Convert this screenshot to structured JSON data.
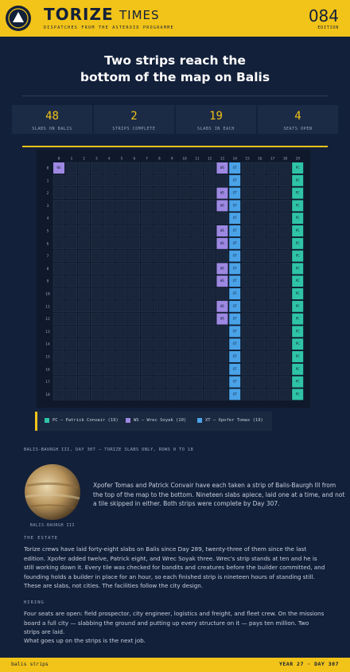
{
  "header": {
    "title": "TORIZE",
    "title2": "TIMES",
    "tagline": "DISPATCHES FROM THE ASTEROID PROGRAMME",
    "edition_number": "084",
    "edition_label": "EDITION"
  },
  "headline": "Two strips reach the bottom of the map on Balis",
  "stats": [
    {
      "value": "48",
      "label": "SLABS ON BALIS"
    },
    {
      "value": "2",
      "label": "STRIPS COMPLETE"
    },
    {
      "value": "19",
      "label": "SLABS IN EACH"
    },
    {
      "value": "4",
      "label": "SEATS OPEN"
    }
  ],
  "map": {
    "column_labels": [
      0,
      1,
      2,
      3,
      4,
      5,
      6,
      7,
      8,
      9,
      10,
      11,
      12,
      13,
      14,
      15,
      16,
      17,
      18,
      19
    ],
    "row_labels": [
      0,
      1,
      2,
      3,
      4,
      5,
      6,
      7,
      8,
      9,
      10,
      11,
      12,
      13,
      14,
      15,
      16,
      17,
      18
    ],
    "grid": [
      [
        "WS",
        null,
        null,
        null,
        null,
        null,
        null,
        null,
        null,
        null,
        null,
        null,
        null,
        "WS",
        "XT",
        null,
        null,
        null,
        null,
        "PC"
      ],
      [
        null,
        null,
        null,
        null,
        null,
        null,
        null,
        null,
        null,
        null,
        null,
        null,
        null,
        null,
        "XT",
        null,
        null,
        null,
        null,
        "PC"
      ],
      [
        null,
        null,
        null,
        null,
        null,
        null,
        null,
        null,
        null,
        null,
        null,
        null,
        null,
        "WS",
        "XT",
        null,
        null,
        null,
        null,
        "PC"
      ],
      [
        null,
        null,
        null,
        null,
        null,
        null,
        null,
        null,
        null,
        null,
        null,
        null,
        null,
        "WS",
        "XT",
        null,
        null,
        null,
        null,
        "PC"
      ],
      [
        null,
        null,
        null,
        null,
        null,
        null,
        null,
        null,
        null,
        null,
        null,
        null,
        null,
        null,
        "XT",
        null,
        null,
        null,
        null,
        "PC"
      ],
      [
        null,
        null,
        null,
        null,
        null,
        null,
        null,
        null,
        null,
        null,
        null,
        null,
        null,
        "WS",
        "XT",
        null,
        null,
        null,
        null,
        "PC"
      ],
      [
        null,
        null,
        null,
        null,
        null,
        null,
        null,
        null,
        null,
        null,
        null,
        null,
        null,
        "WS",
        "XT",
        null,
        null,
        null,
        null,
        "PC"
      ],
      [
        null,
        null,
        null,
        null,
        null,
        null,
        null,
        null,
        null,
        null,
        null,
        null,
        null,
        null,
        "XT",
        null,
        null,
        null,
        null,
        "PC"
      ],
      [
        null,
        null,
        null,
        null,
        null,
        null,
        null,
        null,
        null,
        null,
        null,
        null,
        null,
        "WS",
        "XT",
        null,
        null,
        null,
        null,
        "PC"
      ],
      [
        null,
        null,
        null,
        null,
        null,
        null,
        null,
        null,
        null,
        null,
        null,
        null,
        null,
        "WS",
        "XT",
        null,
        null,
        null,
        null,
        "PC"
      ],
      [
        null,
        null,
        null,
        null,
        null,
        null,
        null,
        null,
        null,
        null,
        null,
        null,
        null,
        null,
        "XT",
        null,
        null,
        null,
        null,
        "PC"
      ],
      [
        null,
        null,
        null,
        null,
        null,
        null,
        null,
        null,
        null,
        null,
        null,
        null,
        null,
        "WS",
        "XT",
        null,
        null,
        null,
        null,
        "PC"
      ],
      [
        null,
        null,
        null,
        null,
        null,
        null,
        null,
        null,
        null,
        null,
        null,
        null,
        null,
        "WS",
        "XT",
        null,
        null,
        null,
        null,
        "PC"
      ],
      [
        null,
        null,
        null,
        null,
        null,
        null,
        null,
        null,
        null,
        null,
        null,
        null,
        null,
        null,
        "XT",
        null,
        null,
        null,
        null,
        "PC"
      ],
      [
        null,
        null,
        null,
        null,
        null,
        null,
        null,
        null,
        null,
        null,
        null,
        null,
        null,
        null,
        "XT",
        null,
        null,
        null,
        null,
        "PC"
      ],
      [
        null,
        null,
        null,
        null,
        null,
        null,
        null,
        null,
        null,
        null,
        null,
        null,
        null,
        null,
        "XT",
        null,
        null,
        null,
        null,
        "PC"
      ],
      [
        null,
        null,
        null,
        null,
        null,
        null,
        null,
        null,
        null,
        null,
        null,
        null,
        null,
        null,
        "XT",
        null,
        null,
        null,
        null,
        "PC"
      ],
      [
        null,
        null,
        null,
        null,
        null,
        null,
        null,
        null,
        null,
        null,
        null,
        null,
        null,
        null,
        "XT",
        null,
        null,
        null,
        null,
        "PC"
      ],
      [
        null,
        null,
        null,
        null,
        null,
        null,
        null,
        null,
        null,
        null,
        null,
        null,
        null,
        null,
        "XT",
        null,
        null,
        null,
        null,
        "PC"
      ]
    ],
    "legend": [
      {
        "code": "PC",
        "label": "PC — Patrick Convair (19)",
        "color": "#2fc4a6"
      },
      {
        "code": "WS",
        "label": "WS — Wrec Soyak (10)",
        "color": "#9d88e2"
      },
      {
        "code": "XT",
        "label": "XT — Xpofer Tomas (19)",
        "color": "#4aa3e8"
      }
    ],
    "caption": "BALIS-BAURGH III, DAY 307 — TORIZE SLABS ONLY, ROWS 0 TO 18"
  },
  "planet_caption": "BALIS-BAURGH III",
  "lede": "Xpofer Tomas and Patrick Convair have each taken a strip of Balis-Baurgh III from the top of the map to the bottom. Nineteen slabs apiece, laid one at a time, and not a tile skipped in either. Both strips were complete by Day 307.",
  "sections": [
    {
      "kicker": "THE ESTATE",
      "text": "Torize crews have laid forty-eight slabs on Balis since Day 289, twenty-three of them since the last edition. Xpofer added twelve, Patrick eight, and Wrec Soyak three. Wrec's strip stands at ten and he is still working down it. Every tile was checked for bandits and creatures before the builder committed, and founding holds a builder in place for an hour, so each finished strip is nineteen hours of standing still. These are slabs, not cities. The facilities follow the city design."
    },
    {
      "kicker": "HIRING",
      "text": "Four seats are open: field prospector, city engineer, logistics and freight, and fleet crew. On the missions board a full city — slabbing the ground and putting up every structure on it — pays ten million. Two strips are laid."
    }
  ],
  "closing": "What goes up on the strips is the next job.",
  "footer": {
    "left": "balis strips",
    "right": "YEAR 27 · DAY 307"
  }
}
